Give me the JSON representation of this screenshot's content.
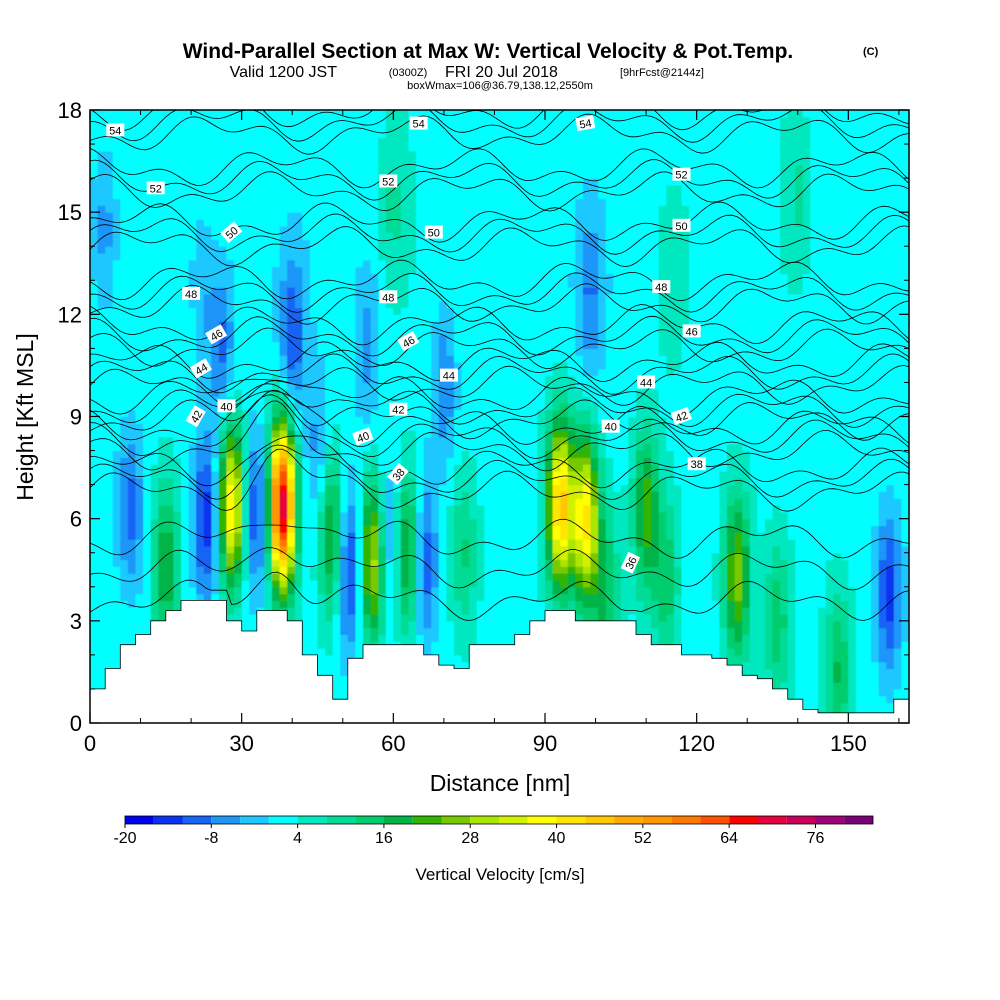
{
  "title": {
    "main": "Wind-Parallel Section at Max W: Vertical Velocity & Pot.Temp.",
    "copyright": "(C)",
    "valid_prefix": "Valid 1200 JST",
    "valid_utc": "(0300Z)",
    "valid_date": "FRI 20 Jul 2018",
    "forecast": "[9hrFcst@2144z]",
    "box_info": "boxWmax=106@36.79,138.12,2550m"
  },
  "chart_data": {
    "type": "heatmap",
    "title": "Wind-Parallel Section at Max W: Vertical Velocity & Pot.Temp.",
    "xlabel": "Distance [nm]",
    "ylabel": "Height [Kft MSL]",
    "xlim": [
      0,
      162
    ],
    "ylim": [
      0,
      18
    ],
    "x_ticks": [
      0,
      30,
      60,
      90,
      120,
      150
    ],
    "y_ticks": [
      0,
      3,
      6,
      9,
      12,
      15,
      18
    ],
    "x_tick_labels": [
      "0",
      "30",
      "60",
      "90",
      "120",
      "150"
    ],
    "y_tick_labels": [
      "0",
      "3",
      "6",
      "9",
      "12",
      "15",
      "18"
    ],
    "colorbar": {
      "label": "Vertical Velocity [cm/s]",
      "tick_values": [
        -20,
        -8,
        4,
        16,
        28,
        40,
        52,
        64,
        76
      ],
      "tick_labels": [
        "-20",
        "-8",
        "4",
        "16",
        "28",
        "40",
        "52",
        "64",
        "76"
      ],
      "levels": [
        -20,
        -16,
        -12,
        -8,
        -4,
        0,
        4,
        8,
        12,
        16,
        20,
        24,
        28,
        32,
        36,
        40,
        44,
        48,
        52,
        56,
        60,
        64,
        68,
        72,
        76,
        80,
        84
      ],
      "colors": [
        "#0000f0",
        "#0a32f0",
        "#1464f5",
        "#1e96f8",
        "#1ec8ff",
        "#00ffff",
        "#00e8c0",
        "#00dc96",
        "#00cd6e",
        "#00b446",
        "#32b400",
        "#78c800",
        "#aae600",
        "#d2f000",
        "#ffff00",
        "#ffe600",
        "#ffc800",
        "#ffaa00",
        "#ff9600",
        "#ff7800",
        "#ff5000",
        "#ff0000",
        "#e6003c",
        "#c8005a",
        "#a00078",
        "#780078"
      ]
    },
    "velocity_cores": [
      {
        "x": 3,
        "z": 14.5,
        "w": -8
      },
      {
        "x": 8,
        "z": 6.3,
        "w": -12
      },
      {
        "x": 15,
        "z": 4.6,
        "w": 18
      },
      {
        "x": 23,
        "z": 6.0,
        "w": -18
      },
      {
        "x": 22,
        "z": 13.0,
        "w": -6
      },
      {
        "x": 26,
        "z": 11.0,
        "w": -12
      },
      {
        "x": 28,
        "z": 6.4,
        "w": 38
      },
      {
        "x": 33,
        "z": 6.2,
        "w": -16
      },
      {
        "x": 38,
        "z": 6.4,
        "w": 68
      },
      {
        "x": 40,
        "z": 11.2,
        "w": -14
      },
      {
        "x": 45,
        "z": 8.0,
        "w": -8
      },
      {
        "x": 48,
        "z": 5.5,
        "w": 22
      },
      {
        "x": 51,
        "z": 4.6,
        "w": -20
      },
      {
        "x": 56,
        "z": 4.8,
        "w": 30
      },
      {
        "x": 55,
        "z": 11.0,
        "w": -8
      },
      {
        "x": 59,
        "z": 5.2,
        "w": -12
      },
      {
        "x": 63,
        "z": 5.0,
        "w": 22
      },
      {
        "x": 66,
        "z": 4.8,
        "w": -16
      },
      {
        "x": 70,
        "z": 10.0,
        "w": -10
      },
      {
        "x": 74,
        "z": 5.0,
        "w": 10
      },
      {
        "x": 93,
        "z": 6.4,
        "w": 44
      },
      {
        "x": 98,
        "z": 6.0,
        "w": 38
      },
      {
        "x": 99,
        "z": 12.5,
        "w": -10
      },
      {
        "x": 102,
        "z": 3.8,
        "w": 14
      },
      {
        "x": 110,
        "z": 6.2,
        "w": 20
      },
      {
        "x": 114,
        "z": 4.2,
        "w": 12
      },
      {
        "x": 128,
        "z": 4.3,
        "w": 24
      },
      {
        "x": 136,
        "z": 3.0,
        "w": 12
      },
      {
        "x": 148,
        "z": 1.5,
        "w": 14
      },
      {
        "x": 158,
        "z": 3.8,
        "w": -16
      },
      {
        "x": 115,
        "z": 13.0,
        "w": 5
      },
      {
        "x": 140,
        "z": 15.5,
        "w": 6
      },
      {
        "x": 60,
        "z": 15.0,
        "w": 6
      }
    ],
    "terrain": {
      "x": [
        0,
        3,
        6,
        9,
        12,
        15,
        18,
        24,
        27,
        30,
        33,
        39,
        42,
        45,
        48,
        51,
        54,
        57,
        63,
        66,
        69,
        72,
        75,
        78,
        81,
        84,
        87,
        90,
        93,
        96,
        99,
        102,
        105,
        108,
        111,
        114,
        117,
        120,
        123,
        126,
        129,
        132,
        135,
        138,
        141,
        144,
        147,
        150,
        153,
        156,
        159,
        162
      ],
      "z": [
        1.0,
        1.6,
        2.3,
        2.6,
        3.0,
        3.3,
        3.6,
        3.6,
        3.0,
        2.7,
        3.3,
        3.0,
        2.0,
        1.4,
        0.7,
        1.9,
        2.3,
        2.3,
        2.3,
        2.0,
        1.7,
        1.6,
        2.3,
        2.3,
        2.3,
        2.6,
        3.0,
        3.3,
        3.3,
        3.0,
        3.0,
        3.0,
        3.0,
        2.6,
        2.3,
        2.3,
        2.0,
        2.0,
        1.9,
        1.7,
        1.4,
        1.3,
        1.0,
        0.7,
        0.4,
        0.3,
        0.3,
        0.3,
        0.3,
        0.3,
        0.7,
        0.7
      ]
    },
    "theta_levels": [
      36,
      38,
      40,
      42,
      44,
      46,
      48,
      50,
      52,
      54
    ],
    "theta_labels": [
      {
        "text": "54",
        "x": 5,
        "z": 17.4,
        "rot": 0
      },
      {
        "text": "54",
        "x": 65,
        "z": 17.6,
        "rot": 0
      },
      {
        "text": "54",
        "x": 98,
        "z": 17.6,
        "rot": -10
      },
      {
        "text": "52",
        "x": 13,
        "z": 15.7,
        "rot": 0
      },
      {
        "text": "52",
        "x": 59,
        "z": 15.9,
        "rot": 0
      },
      {
        "text": "52",
        "x": 117,
        "z": 16.1,
        "rot": 0
      },
      {
        "text": "50",
        "x": 28,
        "z": 14.4,
        "rot": -40
      },
      {
        "text": "50",
        "x": 68,
        "z": 14.4,
        "rot": 0
      },
      {
        "text": "50",
        "x": 117,
        "z": 14.6,
        "rot": 0
      },
      {
        "text": "48",
        "x": 20,
        "z": 12.6,
        "rot": 0
      },
      {
        "text": "48",
        "x": 59,
        "z": 12.5,
        "rot": 0
      },
      {
        "text": "48",
        "x": 113,
        "z": 12.8,
        "rot": 0
      },
      {
        "text": "46",
        "x": 25,
        "z": 11.4,
        "rot": -30
      },
      {
        "text": "46",
        "x": 63,
        "z": 11.2,
        "rot": -30
      },
      {
        "text": "46",
        "x": 119,
        "z": 11.5,
        "rot": 0
      },
      {
        "text": "44",
        "x": 22,
        "z": 10.4,
        "rot": -30
      },
      {
        "text": "44",
        "x": 71,
        "z": 10.2,
        "rot": 0
      },
      {
        "text": "44",
        "x": 110,
        "z": 10.0,
        "rot": 0
      },
      {
        "text": "42",
        "x": 21,
        "z": 9.0,
        "rot": -60
      },
      {
        "text": "42",
        "x": 61,
        "z": 9.2,
        "rot": 0
      },
      {
        "text": "42",
        "x": 117,
        "z": 9.0,
        "rot": -20
      },
      {
        "text": "40",
        "x": 27,
        "z": 9.3,
        "rot": 0
      },
      {
        "text": "40",
        "x": 54,
        "z": 8.4,
        "rot": -20
      },
      {
        "text": "40",
        "x": 103,
        "z": 8.7,
        "rot": 0
      },
      {
        "text": "38",
        "x": 61,
        "z": 7.3,
        "rot": -50
      },
      {
        "text": "38",
        "x": 120,
        "z": 7.6,
        "rot": 0
      },
      {
        "text": "36",
        "x": 107,
        "z": 4.7,
        "rot": -65
      }
    ],
    "grid": false,
    "legend": "colorbar-bottom"
  }
}
